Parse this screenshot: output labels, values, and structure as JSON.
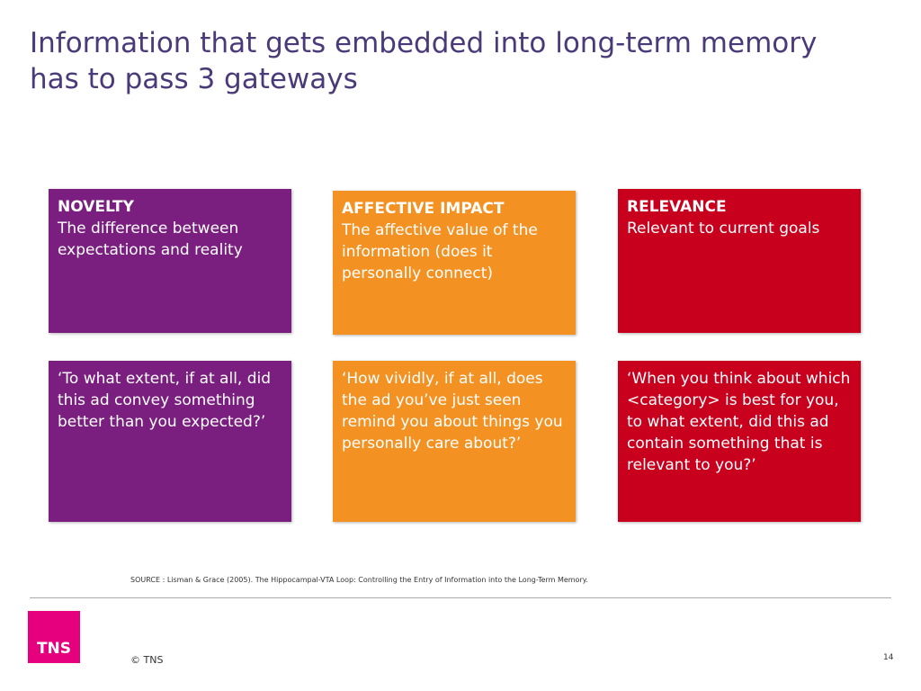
{
  "header": {
    "title": "Information that gets embedded into long-term memory has to pass 3 gateways"
  },
  "gateways": [
    {
      "heading": "NOVELTY",
      "description": "The difference between expectations and reality",
      "question": "‘To what extent, if at all, did this ad convey something better than you expected?’"
    },
    {
      "heading": "AFFECTIVE IMPACT",
      "description": "The affective value of the information (does it personally connect)",
      "question": "‘How vividly, if at all, does the ad you’ve just seen remind you about things you personally care about?’"
    },
    {
      "heading": "RELEVANCE",
      "description": "Relevant to current goals",
      "question": "‘When you think about which <category> is best for you, to what extent, did this ad contain something that is relevant to you?’"
    }
  ],
  "footer": {
    "source": "SOURCE : Lisman & Grace (2005). The Hippocampal-VTA Loop: Controlling the Entry of Information into the Long-Term Memory.",
    "logo": "TNS",
    "copyright": "© TNS",
    "page_number": "14"
  }
}
